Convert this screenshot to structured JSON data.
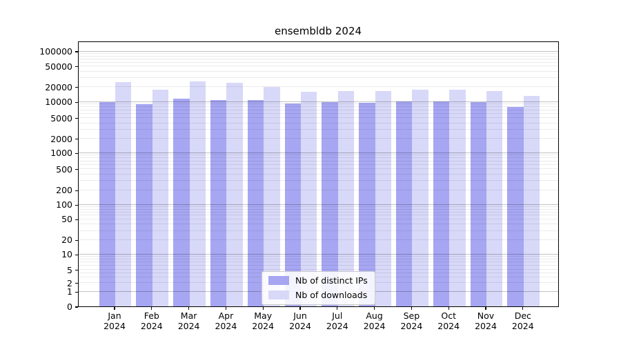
{
  "chart_data": {
    "type": "bar",
    "title": "ensembldb 2024",
    "categories": [
      "Jan",
      "Feb",
      "Mar",
      "Apr",
      "May",
      "Jun",
      "Jul",
      "Aug",
      "Sep",
      "Oct",
      "Nov",
      "Dec"
    ],
    "x_tick_year": "2024",
    "series": [
      {
        "name": "Nb of distinct IPs",
        "color": "#a6a6f2",
        "values": [
          9900,
          9000,
          11400,
          10700,
          10700,
          9300,
          9700,
          9500,
          10100,
          10200,
          9800,
          7900
        ]
      },
      {
        "name": "Nb of downloads",
        "color": "#d8d8f8",
        "values": [
          24500,
          17600,
          25000,
          23600,
          19600,
          16000,
          16400,
          16600,
          17200,
          17600,
          16500,
          13000
        ]
      }
    ],
    "y_axis": {
      "ticks": [
        0,
        1,
        2,
        5,
        10,
        20,
        50,
        100,
        200,
        500,
        1000,
        2000,
        5000,
        10000,
        20000,
        50000,
        100000
      ],
      "scale": "symlog",
      "ylim": [
        0,
        160000
      ]
    },
    "legend": {
      "position": "lower-center",
      "entries": [
        "Nb of distinct IPs",
        "Nb of downloads"
      ]
    },
    "grid": "horizontal, minor + major decade lines"
  }
}
